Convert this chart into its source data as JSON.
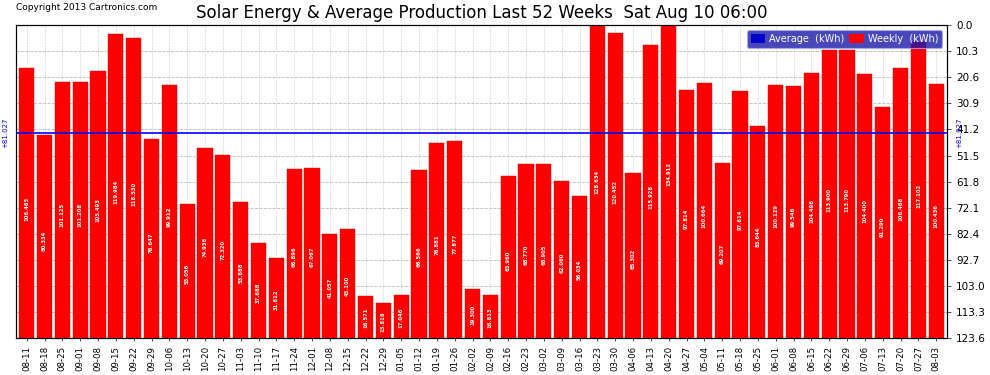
{
  "title": "Solar Energy & Average Production Last 52 Weeks  Sat Aug 10 06:00",
  "copyright": "Copyright 2013 Cartronics.com",
  "average_line": 81.027,
  "ylabel_right": [
    "123.6",
    "113.3",
    "103.0",
    "92.7",
    "82.4",
    "72.1",
    "61.8",
    "51.5",
    "41.2",
    "30.9",
    "20.6",
    "10.3",
    "0.0"
  ],
  "ylim": [
    0,
    123.6
  ],
  "yticks": [
    0.0,
    10.3,
    20.6,
    30.9,
    41.2,
    51.5,
    61.8,
    72.1,
    82.4,
    92.7,
    103.0,
    113.3,
    123.6
  ],
  "bar_color": "#FF0000",
  "avg_line_color": "#0000FF",
  "background_color": "#FFFFFF",
  "plot_bg_color": "#FFFFFF",
  "grid_color": "#AAAAAA",
  "legend_avg_color": "#0000CD",
  "legend_weekly_color": "#FF0000",
  "categories": [
    "08-11",
    "08-18",
    "08-25",
    "09-01",
    "09-08",
    "09-15",
    "09-22",
    "09-29",
    "10-06",
    "10-13",
    "10-20",
    "10-27",
    "11-03",
    "11-10",
    "11-17",
    "11-24",
    "12-01",
    "12-08",
    "12-15",
    "12-22",
    "12-29",
    "01-05",
    "01-12",
    "01-19",
    "01-26",
    "02-02",
    "02-09",
    "02-16",
    "02-23",
    "03-02",
    "03-09",
    "03-16",
    "03-23",
    "03-30",
    "04-06",
    "04-13",
    "04-20",
    "04-27",
    "05-04",
    "05-11",
    "05-18",
    "05-25",
    "06-01",
    "06-08",
    "06-15",
    "06-22",
    "06-29",
    "07-06",
    "07-13",
    "07-20",
    "07-27",
    "08-03"
  ],
  "values": [
    106.465,
    80.334,
    101.125,
    101.208,
    105.493,
    119.984,
    118.53,
    78.647,
    99.912,
    53.056,
    74.938,
    72.32,
    53.888,
    37.688,
    31.812,
    66.896,
    67.067,
    41.057,
    43.1,
    16.571,
    13.818,
    17.046,
    66.566,
    76.881,
    77.877,
    19.3,
    16.813,
    63.96,
    68.77,
    68.905,
    62.06,
    56.034,
    128.634,
    120.452,
    65.302,
    115.928,
    134.912,
    97.814,
    100.664,
    69.207,
    97.614,
    83.644,
    100.129,
    99.546,
    104.496,
    113.9,
    113.79,
    104.4,
    91.29,
    106.468,
    117.102,
    100.436
  ],
  "title_fontsize": 12,
  "tick_fontsize": 6.2,
  "bar_edge_color": "#CC0000"
}
